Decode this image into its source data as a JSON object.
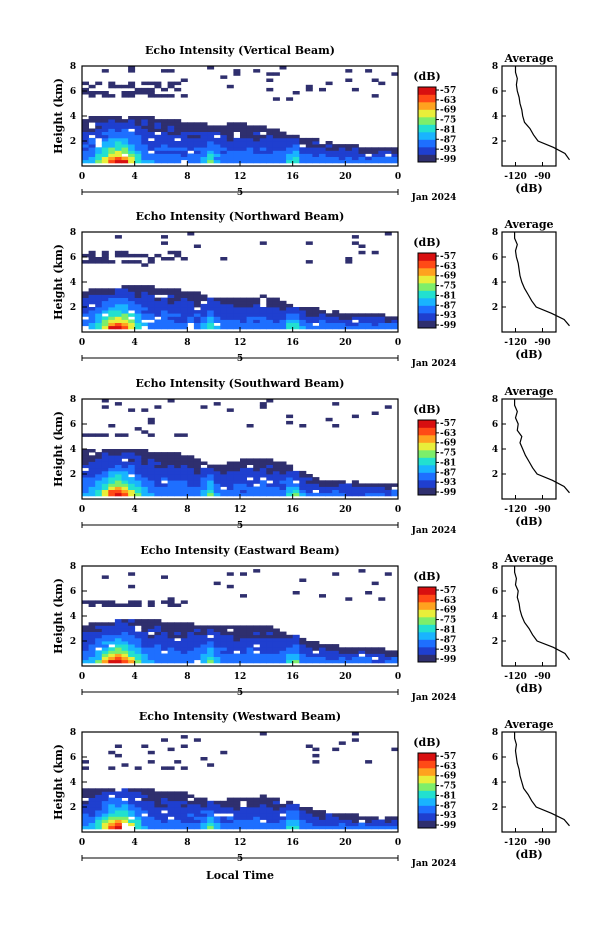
{
  "figure": {
    "date_label": "Jan 2024",
    "xlabel": "Local Time",
    "day_label": "5",
    "x_ticks": [
      "0",
      "4",
      "8",
      "12",
      "16",
      "20",
      "0"
    ],
    "y_ticks": [
      "2",
      "4",
      "6",
      "8"
    ],
    "ylabel": "Height (km)",
    "colorbar_unit": "(dB)",
    "colorbar_ticks": [
      "-57",
      "-63",
      "-69",
      "-75",
      "-81",
      "-87",
      "-93",
      "-99"
    ],
    "avg_title": "Average",
    "avg_xlabel": "(dB)",
    "avg_x_ticks": [
      "-120",
      "-90"
    ]
  },
  "colors": {
    "colormap": [
      "#2f2f6e",
      "#1f3fcf",
      "#1e6fff",
      "#19b4ff",
      "#22e0d0",
      "#7dee6a",
      "#e8ee3a",
      "#ffa21f",
      "#ff4a16",
      "#d80f10"
    ],
    "no_echo": "#ffffff",
    "axes": "#000000"
  },
  "chart_data": [
    {
      "type": "heatmap",
      "title": "Echo Intensity (Vertical Beam)",
      "xlim": [
        0,
        24
      ],
      "ylim": [
        0,
        8
      ],
      "zlim": [
        -99,
        -57
      ],
      "echo_tops_km": {
        "hour": [
          0,
          4,
          8,
          10,
          12,
          14,
          16,
          18,
          20,
          22,
          24
        ],
        "top": [
          3.7,
          4.0,
          3.4,
          3.2,
          3.3,
          3.0,
          2.4,
          2.0,
          1.6,
          1.4,
          1.3
        ]
      },
      "upper_layer_km": [
        5.4,
        6.5
      ],
      "average_profile": {
        "height_km": [
          0.5,
          1.0,
          1.5,
          2.0,
          2.5,
          3.0,
          3.5,
          4.0,
          4.5,
          5.0,
          5.5,
          6.0,
          6.5,
          7.0,
          7.5,
          8.0
        ],
        "db": [
          -60,
          -65,
          -78,
          -95,
          -100,
          -104,
          -110,
          -112,
          -113,
          -115,
          -116,
          -118,
          -119,
          -118,
          -120,
          -120
        ]
      }
    },
    {
      "type": "heatmap",
      "title": "Echo Intensity (Northward Beam)",
      "xlim": [
        0,
        24
      ],
      "ylim": [
        0,
        8
      ],
      "zlim": [
        -99,
        -57
      ],
      "echo_tops_km": {
        "hour": [
          0,
          4,
          8,
          10,
          12,
          14,
          16,
          18,
          20,
          22,
          24
        ],
        "top": [
          3.2,
          3.6,
          3.3,
          2.6,
          2.6,
          2.8,
          2.1,
          1.8,
          1.4,
          1.3,
          1.2
        ]
      },
      "upper_layer_km": [
        5.5,
        6.3
      ],
      "average_profile": {
        "height_km": [
          0.5,
          1.0,
          1.5,
          2.0,
          2.5,
          3.0,
          3.5,
          4.0,
          4.5,
          5.0,
          5.5,
          6.0,
          6.5,
          7.0,
          7.5,
          8.0
        ],
        "db": [
          -60,
          -66,
          -80,
          -97,
          -102,
          -106,
          -110,
          -113,
          -115,
          -116,
          -117,
          -119,
          -120,
          -118,
          -121,
          -121
        ]
      }
    },
    {
      "type": "heatmap",
      "title": "Echo Intensity (Southward Beam)",
      "xlim": [
        0,
        24
      ],
      "ylim": [
        0,
        8
      ],
      "zlim": [
        -99,
        -57
      ],
      "echo_tops_km": {
        "hour": [
          0,
          4,
          8,
          10,
          12,
          14,
          16,
          18,
          20,
          22,
          24
        ],
        "top": [
          3.8,
          3.8,
          3.6,
          2.6,
          3.0,
          3.1,
          2.6,
          1.4,
          1.3,
          1.2,
          1.1
        ]
      },
      "upper_layer_km": [
        4.8,
        5.2
      ],
      "average_profile": {
        "height_km": [
          0.5,
          1.0,
          1.5,
          2.0,
          2.5,
          3.0,
          3.5,
          4.0,
          4.5,
          5.0,
          5.5,
          6.0,
          6.5,
          7.0,
          7.5,
          8.0
        ],
        "db": [
          -60,
          -66,
          -79,
          -96,
          -101,
          -105,
          -109,
          -112,
          -115,
          -113,
          -118,
          -117,
          -120,
          -118,
          -121,
          -121
        ]
      }
    },
    {
      "type": "heatmap",
      "title": "Echo Intensity (Eastward Beam)",
      "xlim": [
        0,
        24
      ],
      "ylim": [
        0,
        8
      ],
      "zlim": [
        -99,
        -57
      ],
      "echo_tops_km": {
        "hour": [
          0,
          4,
          8,
          10,
          12,
          14,
          16,
          18,
          20,
          22,
          24
        ],
        "top": [
          3.3,
          3.6,
          3.4,
          3.0,
          3.1,
          3.2,
          2.4,
          1.7,
          1.4,
          1.3,
          1.2
        ]
      },
      "upper_layer_km": [
        4.6,
        5.0
      ],
      "average_profile": {
        "height_km": [
          0.5,
          1.0,
          1.5,
          2.0,
          2.5,
          3.0,
          3.5,
          4.0,
          4.5,
          5.0,
          5.5,
          6.0,
          6.5,
          7.0,
          7.5,
          8.0
        ],
        "db": [
          -60,
          -65,
          -78,
          -96,
          -101,
          -105,
          -110,
          -113,
          -115,
          -116,
          -118,
          -117,
          -120,
          -119,
          -121,
          -121
        ]
      }
    },
    {
      "type": "heatmap",
      "title": "Echo Intensity (Westward Beam)",
      "xlim": [
        0,
        24
      ],
      "ylim": [
        0,
        8
      ],
      "zlim": [
        -99,
        -57
      ],
      "echo_tops_km": {
        "hour": [
          0,
          4,
          8,
          10,
          12,
          14,
          16,
          18,
          20,
          22,
          24
        ],
        "top": [
          3.4,
          3.4,
          3.0,
          2.4,
          2.6,
          2.8,
          2.2,
          1.6,
          1.3,
          1.2,
          1.1
        ]
      },
      "upper_layer_km": [
        4.8,
        5.2
      ],
      "average_profile": {
        "height_km": [
          0.5,
          1.0,
          1.5,
          2.0,
          2.5,
          3.0,
          3.5,
          4.0,
          4.5,
          5.0,
          5.5,
          6.0,
          6.5,
          7.0,
          7.5,
          8.0
        ],
        "db": [
          -60,
          -66,
          -80,
          -97,
          -102,
          -106,
          -111,
          -113,
          -115,
          -116,
          -118,
          -119,
          -120,
          -119,
          -121,
          -121
        ]
      }
    }
  ]
}
